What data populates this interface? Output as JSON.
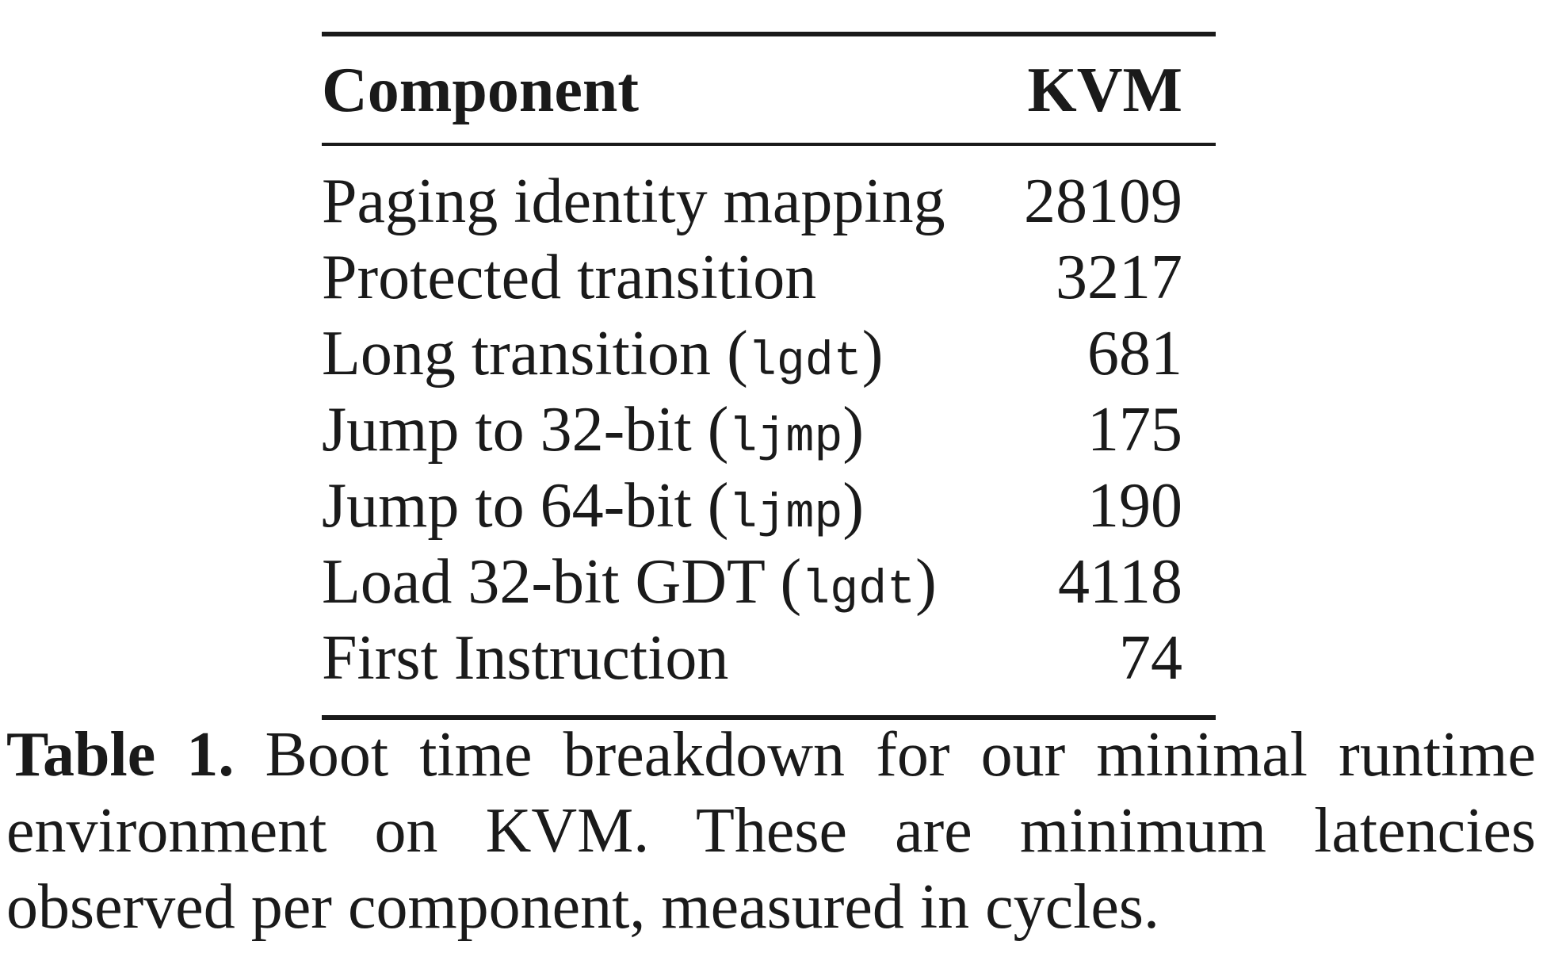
{
  "table": {
    "headers": {
      "component": "Component",
      "kvm": "KVM"
    },
    "rows": [
      {
        "label": "Paging identity mapping",
        "code": "",
        "value": "28109"
      },
      {
        "label": "Protected transition",
        "code": "",
        "value": "3217"
      },
      {
        "label": "Long transition",
        "code": "lgdt",
        "value": "681"
      },
      {
        "label": "Jump to 32-bit",
        "code": "ljmp",
        "value": "175"
      },
      {
        "label": "Jump to 64-bit",
        "code": "ljmp",
        "value": "190"
      },
      {
        "label": "Load 32-bit GDT",
        "code": "lgdt",
        "value": "4118"
      },
      {
        "label": "First Instruction",
        "code": "",
        "value": "74"
      }
    ]
  },
  "caption": {
    "label": "Table 1.",
    "text": "Boot time breakdown for our minimal runtime environment on KVM. These are minimum latencies observed per component, measured in cycles."
  }
}
